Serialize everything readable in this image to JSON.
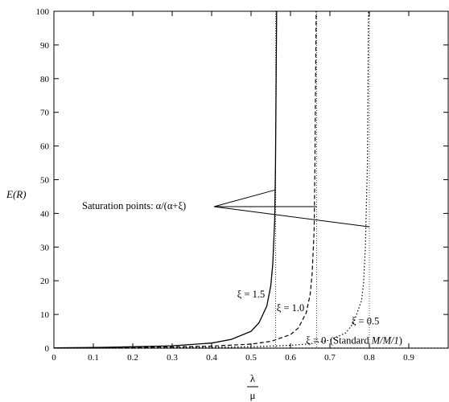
{
  "chart_data": {
    "type": "line",
    "xlabel_num": "λ",
    "xlabel_den": "μ",
    "ylabel": "E(R)",
    "xlim": [
      0,
      1
    ],
    "ylim": [
      0,
      100
    ],
    "xticks": [
      0,
      0.1,
      0.2,
      0.3,
      0.4,
      0.5,
      0.6,
      0.7,
      0.8,
      0.9
    ],
    "xtick_labels": [
      "0",
      "0.1",
      "0.2",
      "0.3",
      "0.4",
      "0.5",
      "0.6",
      "0.7",
      "0.8",
      "0.9"
    ],
    "yticks": [
      0,
      10,
      20,
      30,
      40,
      50,
      60,
      70,
      80,
      90,
      100
    ],
    "ytick_labels": [
      "0",
      "10",
      "20",
      "30",
      "40",
      "50",
      "60",
      "70",
      "80",
      "90",
      "100"
    ],
    "grid": false,
    "series": [
      {
        "name": "ξ = 1.5",
        "style": "solid",
        "color": "#000000",
        "x": [
          0,
          0.1,
          0.2,
          0.3,
          0.4,
          0.45,
          0.5,
          0.52,
          0.54,
          0.55,
          0.555,
          0.56,
          0.562,
          0.565
        ],
        "y": [
          0.1,
          0.2,
          0.4,
          0.7,
          1.5,
          2.6,
          5.0,
          7.5,
          12.5,
          18.5,
          25.0,
          38.0,
          55.0,
          100
        ]
      },
      {
        "name": "ξ = 1.0",
        "style": "dashed",
        "color": "#000000",
        "x": [
          0,
          0.1,
          0.2,
          0.3,
          0.4,
          0.5,
          0.55,
          0.6,
          0.62,
          0.64,
          0.65,
          0.655,
          0.66,
          0.662,
          0.665
        ],
        "y": [
          0.05,
          0.1,
          0.2,
          0.35,
          0.6,
          1.2,
          2.0,
          4.0,
          6.0,
          10.5,
          16.0,
          22.0,
          35.0,
          55.0,
          100
        ]
      },
      {
        "name": "ξ = 0.5",
        "style": "dotted",
        "color": "#000000",
        "x": [
          0,
          0.2,
          0.4,
          0.5,
          0.6,
          0.65,
          0.7,
          0.74,
          0.76,
          0.78,
          0.785,
          0.79,
          0.795,
          0.798
        ],
        "y": [
          0.02,
          0.1,
          0.25,
          0.4,
          0.8,
          1.3,
          2.4,
          4.5,
          7.5,
          14.0,
          19.0,
          30.0,
          55.0,
          100
        ]
      },
      {
        "name": "ξ = 0",
        "style": "dotted",
        "color": "#000000",
        "x": [
          0,
          0.5,
          0.8,
          1.0
        ],
        "y": [
          0,
          0,
          0,
          0
        ]
      }
    ],
    "saturation_points": [
      0.5625,
      0.6667,
      0.8
    ],
    "annotations": {
      "saturation_label": "Saturation points: α/(α+ξ)",
      "curve_labels": [
        {
          "text": "ξ = 1.5",
          "x": 0.5,
          "y": 15
        },
        {
          "text": "ξ = 1.0",
          "x": 0.6,
          "y": 11
        },
        {
          "text": "ξ = 0.5",
          "x": 0.79,
          "y": 7
        },
        {
          "text": "ξ = 0",
          "x": 0.665,
          "y": 1.3
        }
      ],
      "standard_prefix": "(Standard ",
      "standard_model": "M/M/1",
      "standard_suffix": ")"
    }
  }
}
